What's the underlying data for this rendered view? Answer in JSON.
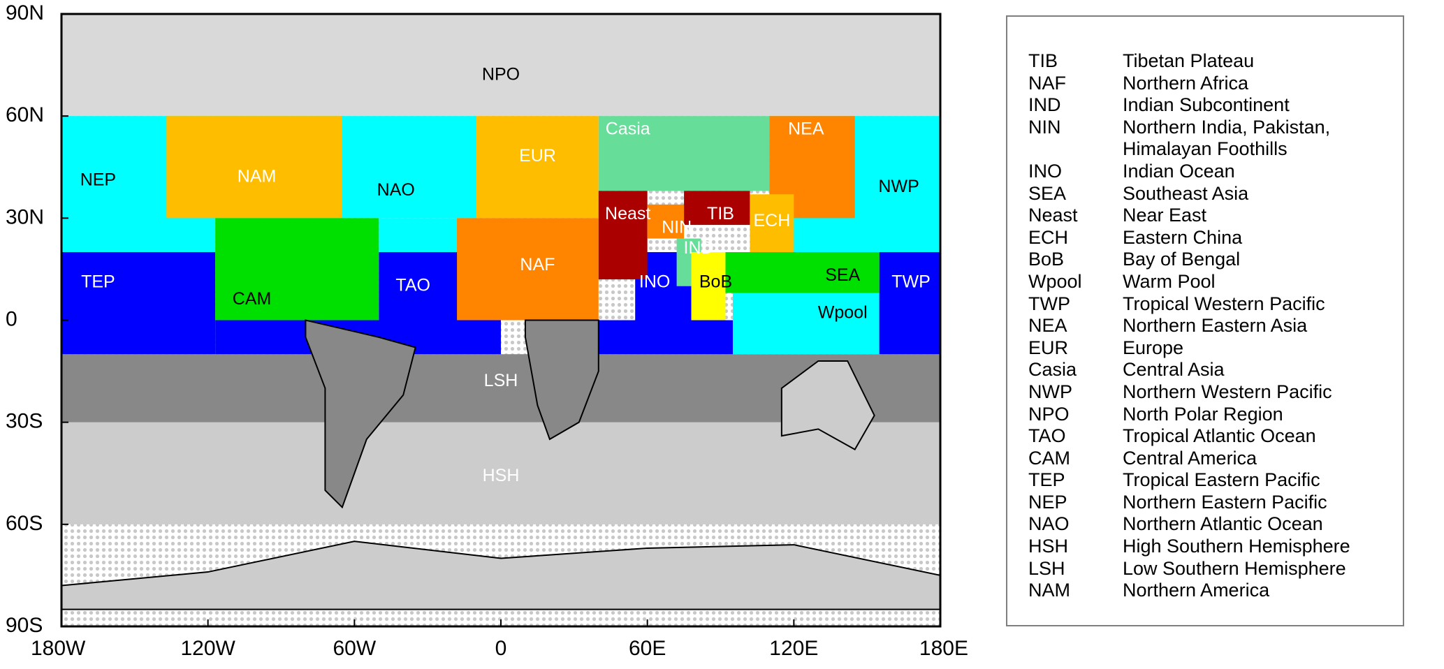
{
  "map": {
    "lat_ticks": [
      "90N",
      "60N",
      "30N",
      "0",
      "30S",
      "60S",
      "90S"
    ],
    "lon_ticks": [
      "180W",
      "120W",
      "60W",
      "0",
      "60E",
      "120E",
      "180E"
    ],
    "bounds": {
      "lon": [
        -180,
        180
      ],
      "lat": [
        -90,
        90
      ]
    },
    "colors": {
      "polar_cap": "#d9d9d9",
      "cyan": "#00ffff",
      "blue": "#0000ff",
      "green": "#00e000",
      "orange_light": "#ffbd00",
      "orange": "#ff8400",
      "dark_red": "#aa0000",
      "mint": "#66dd99",
      "yellow": "#ffff00",
      "gray_dark": "#888888",
      "gray_light": "#cccccc"
    },
    "regions": [
      {
        "code": "NPO",
        "color": "polar_cap",
        "label_color": "#000000",
        "rects": [
          [
            -180,
            60,
            180,
            90
          ]
        ],
        "label_at": [
          0,
          72
        ]
      },
      {
        "code": "HSH",
        "color": "gray_light",
        "label_color": "#ffffff",
        "rects": [
          [
            -180,
            -60,
            180,
            -30
          ]
        ],
        "label_at": [
          0,
          -46
        ]
      },
      {
        "code": "LSH",
        "color": "gray_dark",
        "label_color": "#ffffff",
        "rects": [
          [
            -180,
            -30,
            180,
            -10
          ]
        ],
        "label_at": [
          0,
          -18
        ]
      },
      {
        "code": "NEP",
        "color": "cyan",
        "label_color": "#000000",
        "rects": [
          [
            -180,
            20,
            -117,
            60
          ]
        ],
        "label_at": [
          -165,
          41
        ]
      },
      {
        "code": "NAO",
        "color": "cyan",
        "label_color": "#000000",
        "rects": [
          [
            -117,
            30,
            -10,
            60
          ],
          [
            -50,
            20,
            -10,
            30
          ]
        ],
        "label_at": [
          -43,
          38
        ]
      },
      {
        "code": "NWP",
        "color": "cyan",
        "label_color": "#000000",
        "rects": [
          [
            110,
            20,
            180,
            60
          ]
        ],
        "label_at": [
          163,
          39
        ]
      },
      {
        "code": "Wpool",
        "color": "cyan",
        "label_color": "#000000",
        "rects": [
          [
            95,
            -10,
            155,
            8
          ]
        ],
        "label_at": [
          140,
          2
        ]
      },
      {
        "code": "TEP",
        "color": "blue",
        "label_color": "#ffffff",
        "rects": [
          [
            -180,
            -10,
            -117,
            20
          ]
        ],
        "label_at": [
          -165,
          11
        ]
      },
      {
        "code": "TAO",
        "color": "blue",
        "label_color": "#ffffff",
        "rects": [
          [
            -117,
            -10,
            0,
            0
          ],
          [
            -50,
            0,
            -10,
            20
          ]
        ],
        "label_at": [
          -36,
          10
        ]
      },
      {
        "code": "TWP",
        "color": "blue",
        "label_color": "#ffffff",
        "rects": [
          [
            155,
            -10,
            180,
            20
          ]
        ],
        "label_at": [
          168,
          11
        ]
      },
      {
        "code": "INO",
        "color": "blue",
        "label_color": "#ffffff",
        "rects": [
          [
            40,
            -10,
            95,
            0
          ],
          [
            55,
            0,
            78,
            20
          ]
        ],
        "label_at": [
          63,
          11
        ]
      },
      {
        "code": "NAM",
        "color": "orange_light",
        "label_color": "#ffffff",
        "rects": [
          [
            -137,
            30,
            -65,
            60
          ]
        ],
        "label_at": [
          -100,
          42
        ]
      },
      {
        "code": "CAM",
        "color": "green",
        "label_color": "#000000",
        "rects": [
          [
            -117,
            0,
            -50,
            30
          ]
        ],
        "label_at": [
          -102,
          6
        ]
      },
      {
        "code": "EUR",
        "color": "orange_light",
        "label_color": "#ffffff",
        "rects": [
          [
            -10,
            30,
            40,
            60
          ]
        ],
        "label_at": [
          15,
          48
        ]
      },
      {
        "code": "Casia",
        "color": "mint",
        "label_color": "#ffffff",
        "rects": [
          [
            40,
            38,
            110,
            60
          ]
        ],
        "label_at": [
          52,
          56
        ]
      },
      {
        "code": "NEA",
        "color": "orange",
        "label_color": "#ffffff",
        "rects": [
          [
            110,
            30,
            145,
            60
          ]
        ],
        "label_at": [
          125,
          56
        ]
      },
      {
        "code": "NAF",
        "color": "orange",
        "label_color": "#ffffff",
        "rects": [
          [
            -18,
            0,
            40,
            30
          ]
        ],
        "label_at": [
          15,
          16
        ]
      },
      {
        "code": "Neast",
        "color": "dark_red",
        "label_color": "#ffffff",
        "rects": [
          [
            40,
            12,
            60,
            38
          ]
        ],
        "label_at": [
          52,
          31
        ]
      },
      {
        "code": "NIN",
        "color": "orange",
        "label_color": "#ffffff",
        "rects": [
          [
            60,
            24,
            75,
            34
          ]
        ],
        "label_at": [
          72,
          27
        ]
      },
      {
        "code": "TIB",
        "color": "dark_red",
        "label_color": "#ffffff",
        "rects": [
          [
            75,
            28,
            102,
            38
          ]
        ],
        "label_at": [
          90,
          31
        ]
      },
      {
        "code": "ECH",
        "color": "orange_light",
        "label_color": "#ffffff",
        "rects": [
          [
            102,
            20,
            120,
            37
          ]
        ],
        "label_at": [
          111,
          29
        ]
      },
      {
        "code": "IND",
        "color": "mint",
        "label_color": "#ffffff",
        "rects": [
          [
            72,
            10,
            82,
            24
          ]
        ],
        "label_at": [
          81,
          21
        ]
      },
      {
        "code": "BoB",
        "color": "yellow",
        "label_color": "#000000",
        "rects": [
          [
            78,
            0,
            92,
            20
          ]
        ],
        "label_at": [
          88,
          11
        ]
      },
      {
        "code": "SEA",
        "color": "green",
        "label_color": "#000000",
        "rects": [
          [
            92,
            8,
            155,
            20
          ]
        ],
        "label_at": [
          140,
          13
        ]
      }
    ],
    "land_hints": [
      {
        "name": "south-america",
        "color": "gray_dark",
        "path": [
          [
            -80,
            0
          ],
          [
            -50,
            -5
          ],
          [
            -35,
            -8
          ],
          [
            -40,
            -22
          ],
          [
            -55,
            -35
          ],
          [
            -65,
            -55
          ],
          [
            -72,
            -50
          ],
          [
            -72,
            -20
          ],
          [
            -80,
            -5
          ]
        ]
      },
      {
        "name": "southern-africa",
        "color": "gray_dark",
        "path": [
          [
            10,
            0
          ],
          [
            40,
            0
          ],
          [
            40,
            -15
          ],
          [
            32,
            -30
          ],
          [
            20,
            -35
          ],
          [
            15,
            -25
          ],
          [
            10,
            -5
          ]
        ]
      },
      {
        "name": "australia",
        "color": "gray_light",
        "path": [
          [
            115,
            -20
          ],
          [
            130,
            -12
          ],
          [
            142,
            -12
          ],
          [
            153,
            -28
          ],
          [
            145,
            -38
          ],
          [
            130,
            -32
          ],
          [
            115,
            -34
          ]
        ]
      },
      {
        "name": "antarctica",
        "color": "gray_light",
        "path": [
          [
            -180,
            -85
          ],
          [
            -180,
            -78
          ],
          [
            -120,
            -74
          ],
          [
            -60,
            -65
          ],
          [
            0,
            -70
          ],
          [
            60,
            -67
          ],
          [
            120,
            -66
          ],
          [
            180,
            -75
          ],
          [
            180,
            -85
          ]
        ]
      }
    ]
  },
  "legend": {
    "items": [
      {
        "code": "TIB",
        "name": "Tibetan Plateau"
      },
      {
        "code": "NAF",
        "name": "Northern Africa"
      },
      {
        "code": "IND",
        "name": "Indian Subcontinent"
      },
      {
        "code": "NIN",
        "name": "Northern India, Pakistan,"
      },
      {
        "code": "",
        "name": "Himalayan Foothills"
      },
      {
        "code": "INO",
        "name": "Indian Ocean"
      },
      {
        "code": "SEA",
        "name": "Southeast Asia"
      },
      {
        "code": "Neast",
        "name": "Near East"
      },
      {
        "code": "ECH",
        "name": "Eastern China"
      },
      {
        "code": "BoB",
        "name": "Bay of Bengal"
      },
      {
        "code": "Wpool",
        "name": "Warm Pool"
      },
      {
        "code": "TWP",
        "name": "Tropical Western Pacific"
      },
      {
        "code": "NEA",
        "name": "Northern Eastern Asia"
      },
      {
        "code": "EUR",
        "name": "Europe"
      },
      {
        "code": "Casia",
        "name": "Central Asia"
      },
      {
        "code": "NWP",
        "name": "Northern Western Pacific"
      },
      {
        "code": "NPO",
        "name": "North Polar Region"
      },
      {
        "code": "TAO",
        "name": "Tropical Atlantic Ocean"
      },
      {
        "code": "CAM",
        "name": "Central America"
      },
      {
        "code": "TEP",
        "name": "Tropical Eastern Pacific"
      },
      {
        "code": "NEP",
        "name": "Northern Eastern Pacific"
      },
      {
        "code": "NAO",
        "name": "Northern Atlantic Ocean"
      },
      {
        "code": "HSH",
        "name": "High Southern Hemisphere"
      },
      {
        "code": "LSH",
        "name": "Low Southern Hemisphere"
      },
      {
        "code": "NAM",
        "name": "Northern America"
      }
    ]
  }
}
